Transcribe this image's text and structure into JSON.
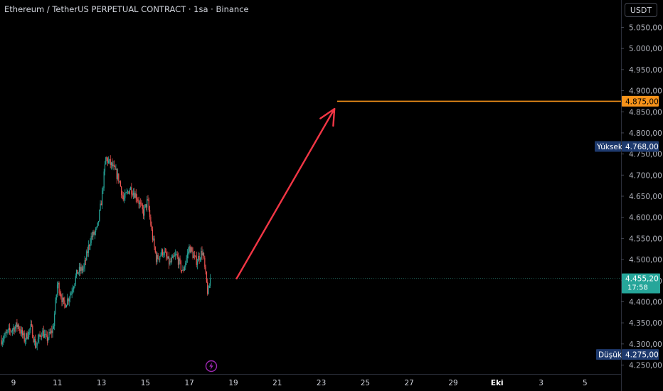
{
  "header": {
    "title": "Ethereum / TetherUS PERPETUAL CONTRACT · 1sa · Binance",
    "currency": "USDT"
  },
  "chart_data": {
    "type": "candlestick",
    "y_ticks": [
      4250,
      4300,
      4350,
      4400,
      4450,
      4500,
      4550,
      4600,
      4650,
      4700,
      4750,
      4800,
      4850,
      4900,
      4950,
      5000,
      5050
    ],
    "y_tick_labels": [
      "4.250,00",
      "4.300,00",
      "4.350,00",
      "4.400,00",
      "4.450,00",
      "4.500,00",
      "4.550,00",
      "4.600,00",
      "4.650,00",
      "4.700,00",
      "4.750,00",
      "4.800,00",
      "4.850,00",
      "4.900,00",
      "4.950,00",
      "5.000,00",
      "5.050,00"
    ],
    "x_tick_labels": [
      "9",
      "11",
      "13",
      "15",
      "17",
      "19",
      "21",
      "23",
      "25",
      "27",
      "29",
      "Eki",
      "3",
      "5"
    ],
    "ylim": [
      4225,
      5085
    ],
    "current_price": 4455.2,
    "current_price_label": "4.455,20",
    "countdown": "17:58",
    "target_level": 4875,
    "target_level_label": "4.875,00",
    "high": {
      "label": "Yüksek",
      "value": 4768,
      "value_label": "4.768,00"
    },
    "low": {
      "label": "Düşük",
      "value": 4275,
      "value_label": "4.275,00"
    },
    "arrow": {
      "from_day": 19.15,
      "from_price": 4455,
      "to_day": 23.6,
      "to_price": 4857
    },
    "price_path": [
      [
        8.45,
        4310
      ],
      [
        8.8,
        4330
      ],
      [
        9.2,
        4345
      ],
      [
        9.5,
        4310
      ],
      [
        9.8,
        4340
      ],
      [
        10.0,
        4295
      ],
      [
        10.3,
        4330
      ],
      [
        10.5,
        4310
      ],
      [
        10.8,
        4335
      ],
      [
        11.0,
        4445
      ],
      [
        11.3,
        4390
      ],
      [
        11.6,
        4420
      ],
      [
        11.9,
        4470
      ],
      [
        12.2,
        4480
      ],
      [
        12.5,
        4550
      ],
      [
        12.8,
        4570
      ],
      [
        13.0,
        4640
      ],
      [
        13.2,
        4740
      ],
      [
        13.5,
        4720
      ],
      [
        13.8,
        4690
      ],
      [
        14.0,
        4640
      ],
      [
        14.3,
        4670
      ],
      [
        14.6,
        4650
      ],
      [
        14.9,
        4610
      ],
      [
        15.1,
        4640
      ],
      [
        15.3,
        4560
      ],
      [
        15.5,
        4500
      ],
      [
        15.8,
        4520
      ],
      [
        16.1,
        4490
      ],
      [
        16.4,
        4510
      ],
      [
        16.7,
        4470
      ],
      [
        17.0,
        4530
      ],
      [
        17.3,
        4495
      ],
      [
        17.6,
        4520
      ],
      [
        17.85,
        4415
      ],
      [
        17.95,
        4455
      ]
    ],
    "series_colors": {
      "up": "#26a69a",
      "down": "#ef5350"
    },
    "colors": {
      "grid_dotted": "#1e5c52",
      "target": "#f7931a",
      "arrow": "#f23645",
      "current": "#26a69a",
      "high_low_bg": "#1e3a6e",
      "bolt": "#9c27b0"
    }
  }
}
